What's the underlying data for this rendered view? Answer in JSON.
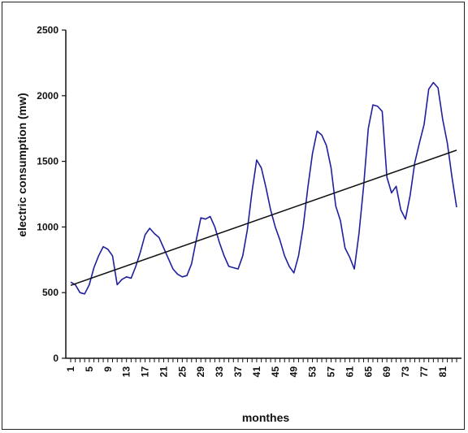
{
  "chart_data": {
    "type": "line",
    "title": "",
    "xlabel": "monthes",
    "ylabel": "electric consumption (mw)",
    "ylim": [
      0,
      2500
    ],
    "y_ticks": [
      0,
      500,
      1000,
      1500,
      2000,
      2500
    ],
    "x_tick_labels": [
      "1",
      "5",
      "9",
      "13",
      "17",
      "21",
      "25",
      "29",
      "33",
      "37",
      "41",
      "45",
      "49",
      "53",
      "57",
      "61",
      "65",
      "69",
      "73",
      "77",
      "81"
    ],
    "x_range": [
      1,
      84
    ],
    "grid": false,
    "legend": "none",
    "series": [
      {
        "color": "#1f1fa0",
        "x": [
          1,
          2,
          3,
          4,
          5,
          6,
          7,
          8,
          9,
          10,
          11,
          12,
          13,
          14,
          15,
          16,
          17,
          18,
          19,
          20,
          21,
          22,
          23,
          24,
          25,
          26,
          27,
          28,
          29,
          30,
          31,
          32,
          33,
          34,
          35,
          36,
          37,
          38,
          39,
          40,
          41,
          42,
          43,
          44,
          45,
          46,
          47,
          48,
          49,
          50,
          51,
          52,
          53,
          54,
          55,
          56,
          57,
          58,
          59,
          60,
          61,
          62,
          63,
          64,
          65,
          66,
          67,
          68,
          69,
          70,
          71,
          72,
          73,
          74,
          75,
          76,
          77,
          78,
          79,
          80,
          81,
          82,
          83,
          84
        ],
        "values": [
          580,
          560,
          500,
          490,
          560,
          690,
          780,
          850,
          830,
          780,
          560,
          600,
          620,
          610,
          700,
          810,
          940,
          990,
          950,
          920,
          840,
          760,
          680,
          640,
          620,
          630,
          720,
          900,
          1070,
          1060,
          1080,
          1000,
          880,
          780,
          700,
          690,
          680,
          780,
          980,
          1270,
          1510,
          1450,
          1300,
          1130,
          1000,
          900,
          780,
          700,
          650,
          780,
          1000,
          1300,
          1560,
          1730,
          1700,
          1620,
          1450,
          1160,
          1050,
          840,
          770,
          680,
          950,
          1310,
          1750,
          1930,
          1920,
          1880,
          1380,
          1260,
          1310,
          1130,
          1060,
          1240,
          1490,
          1640,
          1780,
          2050,
          2100,
          2060,
          1820,
          1640,
          1380,
          1150
        ]
      },
      {
        "color": "#111111",
        "x": [
          1,
          84
        ],
        "values": [
          555,
          1585
        ]
      }
    ]
  }
}
